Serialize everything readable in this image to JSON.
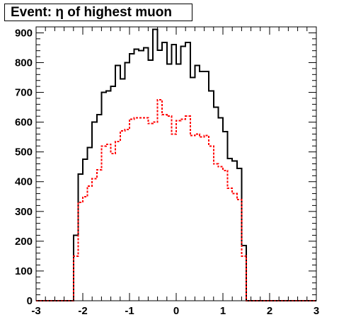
{
  "chart_data": {
    "type": "histogram",
    "title": "Event: η of highest muon",
    "xlabel": "",
    "ylabel": "",
    "xlim": [
      -3,
      3
    ],
    "ylim": [
      0,
      920
    ],
    "x_ticks": [
      "-3",
      "-2",
      "-1",
      "0",
      "1",
      "2",
      "3"
    ],
    "y_ticks": [
      "0",
      "100",
      "200",
      "300",
      "400",
      "500",
      "600",
      "700",
      "800",
      "900"
    ],
    "legend": "none",
    "grid": false,
    "bin_edges_start": -3.0,
    "bin_width": 0.1,
    "series": [
      {
        "color": "#000000",
        "style": "solid",
        "values": [
          0,
          0,
          0,
          0,
          0,
          0,
          0,
          0,
          220,
          425,
          475,
          515,
          600,
          625,
          700,
          705,
          720,
          790,
          745,
          800,
          830,
          845,
          840,
          850,
          808,
          912,
          842,
          868,
          795,
          860,
          795,
          855,
          868,
          750,
          790,
          770,
          770,
          705,
          650,
          615,
          568,
          478,
          470,
          445,
          185,
          0,
          0,
          0,
          0,
          0,
          0,
          0,
          0,
          0,
          0,
          0,
          0,
          0,
          0,
          0
        ]
      },
      {
        "color": "#ff0000",
        "style": "dashed",
        "values": [
          0,
          0,
          0,
          0,
          0,
          0,
          0,
          0,
          150,
          330,
          350,
          385,
          410,
          440,
          520,
          525,
          495,
          535,
          570,
          575,
          610,
          615,
          615,
          615,
          595,
          600,
          675,
          625,
          620,
          560,
          605,
          610,
          620,
          555,
          560,
          550,
          555,
          520,
          460,
          450,
          438,
          378,
          360,
          340,
          150,
          0,
          0,
          0,
          0,
          0,
          0,
          0,
          0,
          0,
          0,
          0,
          0,
          0,
          0,
          0
        ]
      }
    ]
  }
}
